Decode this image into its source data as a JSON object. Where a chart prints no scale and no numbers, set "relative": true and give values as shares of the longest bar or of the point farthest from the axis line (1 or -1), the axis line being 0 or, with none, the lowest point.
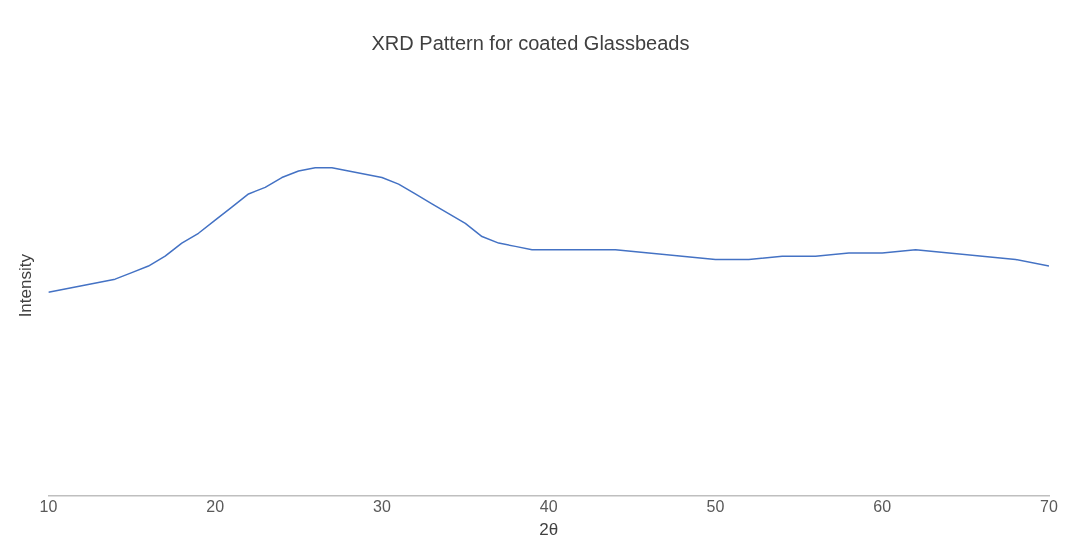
{
  "chart_data": {
    "type": "line",
    "title": "XRD Pattern for coated Glassbeads",
    "xlabel": "2θ",
    "ylabel": "Intensity",
    "relative": true,
    "marker": "none",
    "grid": false,
    "legend": false,
    "x": [
      10,
      11,
      12,
      13,
      14,
      15,
      16,
      17,
      18,
      19,
      20,
      21,
      22,
      23,
      24,
      25,
      26,
      27,
      28,
      29,
      30,
      31,
      32,
      33,
      34,
      35,
      36,
      37,
      38,
      39,
      40,
      42,
      44,
      46,
      48,
      50,
      52,
      54,
      56,
      58,
      60,
      62,
      64,
      66,
      68,
      70
    ],
    "xlim": [
      10,
      70
    ],
    "xticks": [
      10,
      20,
      30,
      40,
      50,
      60,
      70
    ],
    "series": [
      {
        "color": "#4472c4",
        "values": [
          0.62,
          0.63,
          0.64,
          0.65,
          0.66,
          0.68,
          0.7,
          0.73,
          0.77,
          0.8,
          0.84,
          0.88,
          0.92,
          0.94,
          0.97,
          0.99,
          1.0,
          1.0,
          0.99,
          0.98,
          0.97,
          0.95,
          0.92,
          0.89,
          0.86,
          0.83,
          0.79,
          0.77,
          0.76,
          0.75,
          0.75,
          0.75,
          0.75,
          0.74,
          0.73,
          0.72,
          0.72,
          0.73,
          0.73,
          0.74,
          0.74,
          0.75,
          0.74,
          0.73,
          0.72,
          0.7
        ]
      }
    ]
  }
}
